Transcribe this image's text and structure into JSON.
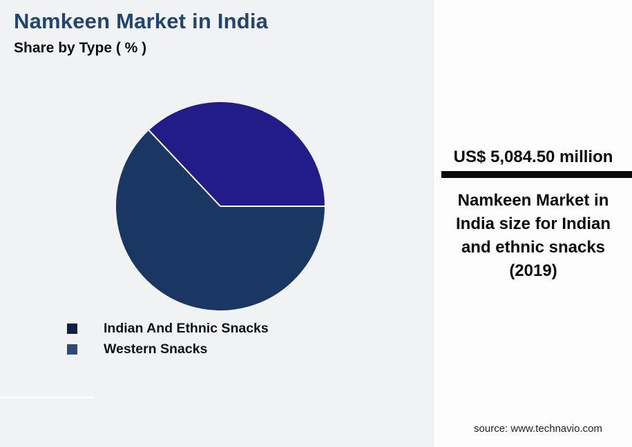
{
  "chart_data": {
    "type": "pie",
    "title": "Namkeen Market in India",
    "subtitle": "Share by Type ( % )",
    "categories": [
      "Indian And Ethnic Snacks",
      "Western Snacks"
    ],
    "values": [
      63,
      37
    ],
    "slice_colors": [
      "#1A3763",
      "#211C87"
    ],
    "legend_marker_colors": [
      "#0F2040",
      "#2E4A7C"
    ],
    "slice_border_color": "#FFFFFF",
    "start_angle_deg": 0,
    "direction": "clockwise",
    "legend_position": "bottom-left"
  },
  "stat_panel": {
    "value": "US$ 5,084.50 million",
    "description": "Namkeen Market in\nIndia size for Indian\nand ethnic snacks\n(2019)",
    "source": "source: www.technavio.com"
  },
  "colors": {
    "background": "#F1F2F4",
    "card_background": "#FDFDFE",
    "title_text": "#20456F",
    "body_text": "#111111",
    "divider_bar": "#0A0A0A"
  }
}
